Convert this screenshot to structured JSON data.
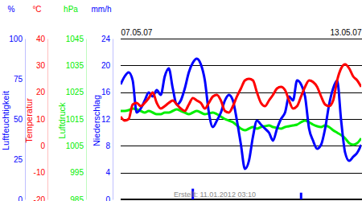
{
  "chart_data": [
    {
      "type": "line",
      "ylabel": "Luftfeuchtigkeit",
      "y_unit": "%",
      "x": [
        0,
        1,
        2,
        3,
        4,
        5,
        6,
        7,
        8,
        9,
        10,
        11,
        12,
        13,
        14,
        15,
        16,
        17,
        18,
        19,
        20,
        21,
        22,
        23,
        24,
        25,
        26,
        27,
        28,
        29,
        30,
        31,
        32,
        33,
        34,
        35,
        36,
        37,
        38,
        39,
        40,
        41,
        42,
        43,
        44,
        45,
        46,
        47,
        48,
        49,
        50,
        51,
        52,
        53,
        54,
        55,
        56,
        57,
        58,
        59,
        60
      ],
      "xlim": [
        0,
        60
      ],
      "xticks": [
        {
          "value": 0,
          "label": "07.05.07"
        },
        {
          "value": 60,
          "label": "13.05.07"
        }
      ],
      "annotation": "Erstellt: 11.01.2012 03:10",
      "ylim": [
        0,
        100
      ],
      "yticks": [
        0,
        25,
        50,
        75,
        100
      ],
      "series": [
        {
          "color": "#0000ff",
          "values": [
            71.5,
            76.5,
            79,
            74,
            54,
            56.5,
            61.5,
            66.5,
            64,
            68,
            65,
            76.5,
            81.5,
            69,
            59,
            61.5,
            69,
            79,
            85,
            87.5,
            84,
            74,
            54,
            45,
            49,
            54,
            61.5,
            65,
            61.5,
            49,
            34,
            19,
            24,
            39,
            49,
            46.5,
            44,
            41.5,
            36.5,
            44,
            50,
            54,
            64,
            61.5,
            74,
            71.5,
            64,
            44,
            36.5,
            31.5,
            34,
            44,
            59,
            69,
            74,
            49,
            29,
            24,
            26.5,
            29,
            34
          ]
        }
      ]
    },
    {
      "type": "line",
      "ylabel": "Temperatur",
      "y_unit": "°C",
      "grid": true,
      "ylim": [
        -20,
        40
      ],
      "yticks": [
        -20,
        -10,
        0,
        10,
        20,
        30,
        40
      ],
      "series": [
        {
          "color": "#ff0000",
          "values": [
            10.9,
            9.4,
            10,
            15.4,
            16,
            14.8,
            16,
            17.8,
            19.9,
            16,
            13.9,
            14.8,
            16,
            16.9,
            15.4,
            13.9,
            13,
            15.4,
            17.8,
            16.9,
            16,
            13.9,
            16,
            18.4,
            19,
            16.9,
            13,
            12.4,
            14.8,
            18.4,
            21.4,
            24.4,
            25,
            24.4,
            19.9,
            16,
            14.8,
            16.9,
            19,
            21.4,
            22,
            20.8,
            16.9,
            13.9,
            14.8,
            18.4,
            22,
            24.4,
            23.8,
            22,
            18.4,
            15.4,
            14.8,
            16.9,
            24.4,
            28.9,
            30.4,
            28.9,
            25.9,
            24.4,
            22
          ]
        }
      ]
    },
    {
      "type": "line",
      "ylabel": "Luftdruck",
      "y_unit": "hPa",
      "ylim": [
        985,
        1045
      ],
      "yticks": [
        985,
        995,
        1005,
        1015,
        1025,
        1035,
        1045
      ],
      "series": [
        {
          "color": "#00ee00",
          "values": [
            1018,
            1018,
            1018.3,
            1018.9,
            1018.6,
            1018,
            1017.4,
            1018,
            1017.4,
            1016.8,
            1016.8,
            1017.4,
            1017.4,
            1018,
            1018.6,
            1018,
            1017.4,
            1016.8,
            1017.4,
            1018,
            1017.4,
            1016.8,
            1017.1,
            1017.4,
            1016.8,
            1015.9,
            1015,
            1014.4,
            1013.8,
            1012.6,
            1011.4,
            1010.8,
            1011.4,
            1012,
            1011.4,
            1012,
            1012.3,
            1012.6,
            1012,
            1011.7,
            1011.4,
            1012,
            1012.3,
            1012.6,
            1012.9,
            1013.8,
            1014.4,
            1013.8,
            1012.9,
            1012.3,
            1012,
            1012.6,
            1012,
            1010.8,
            1009.9,
            1009,
            1007.8,
            1006,
            1005.4,
            1006,
            1007.8
          ]
        }
      ]
    },
    {
      "type": "bar",
      "ylabel": "Niederschlag",
      "y_unit": "mm/h",
      "ylim": [
        0,
        24
      ],
      "yticks": [
        0,
        4,
        8,
        12,
        16,
        20,
        24
      ],
      "series": [
        {
          "color": "#0000ff",
          "values": [
            0,
            0,
            0,
            0,
            0,
            0,
            0,
            0,
            0,
            0,
            0,
            0,
            0,
            0,
            0,
            0,
            0,
            0,
            1.6,
            0,
            0,
            0,
            0,
            0,
            0,
            0,
            0,
            0,
            0,
            0,
            0,
            0,
            0,
            0,
            0,
            0,
            0,
            0,
            0,
            0,
            0,
            0,
            0,
            0,
            0,
            1.0,
            0,
            0,
            0,
            0,
            0,
            0,
            0,
            0,
            0,
            0,
            0,
            0,
            0,
            0,
            0
          ]
        }
      ]
    }
  ]
}
